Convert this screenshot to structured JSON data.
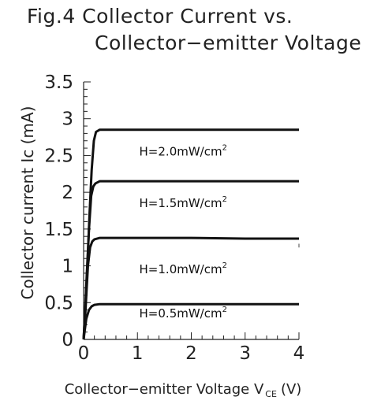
{
  "title": {
    "line1": "Fig.4 Collector Current vs.",
    "line2": "Collector−emitter Voltage"
  },
  "chart_data": {
    "type": "line",
    "title": "Fig.4 Collector Current vs. Collector−emitter Voltage",
    "xlabel_main": "Collector−emitter Voltage V",
    "xlabel_sub": "CE",
    "xlabel_unit": "(V)",
    "ylabel": "Collector current Ic (mA)",
    "xlim": [
      0,
      4
    ],
    "ylim": [
      0,
      3.5
    ],
    "x_ticks": [
      "0",
      "1",
      "2",
      "3",
      "4"
    ],
    "y_ticks": [
      "0",
      "0.5",
      "1",
      "1.5",
      "2",
      "2.5",
      "3",
      "3.5"
    ],
    "grid": false,
    "series": [
      {
        "name": "H=0.5mW/cm2",
        "label_main": "H=0.5mW/cm",
        "label_sup": "2",
        "label_x": 1.85,
        "label_y": 0.3,
        "x": [
          0,
          0.02,
          0.05,
          0.1,
          0.15,
          0.2,
          0.3,
          0.5,
          1,
          2,
          3,
          4
        ],
        "y": [
          0,
          0.12,
          0.28,
          0.4,
          0.45,
          0.47,
          0.48,
          0.48,
          0.48,
          0.48,
          0.48,
          0.48
        ]
      },
      {
        "name": "H=1.0mW/cm2",
        "label_main": "H=1.0mW/cm",
        "label_sup": "2",
        "label_x": 1.85,
        "label_y": 0.9,
        "x": [
          0,
          0.02,
          0.05,
          0.08,
          0.12,
          0.16,
          0.2,
          0.3,
          0.5,
          1,
          2,
          3,
          4
        ],
        "y": [
          0,
          0.2,
          0.6,
          1.0,
          1.25,
          1.33,
          1.36,
          1.38,
          1.38,
          1.38,
          1.38,
          1.37,
          1.37
        ]
      },
      {
        "name": "H=1.5mW/cm2",
        "label_main": "H=1.5mW/cm",
        "label_sup": "2",
        "label_x": 1.85,
        "label_y": 1.8,
        "x": [
          0,
          0.03,
          0.06,
          0.1,
          0.14,
          0.18,
          0.22,
          0.3,
          0.5,
          1,
          2,
          3,
          4
        ],
        "y": [
          0,
          0.4,
          0.9,
          1.5,
          1.95,
          2.08,
          2.12,
          2.15,
          2.15,
          2.15,
          2.15,
          2.15,
          2.15
        ]
      },
      {
        "name": "H=2.0mW/cm2",
        "label_main": "H=2.0mW/cm",
        "label_sup": "2",
        "label_x": 1.85,
        "label_y": 2.5,
        "x": [
          0,
          0.03,
          0.07,
          0.11,
          0.15,
          0.19,
          0.23,
          0.3,
          0.5,
          1,
          2,
          3,
          4
        ],
        "y": [
          0,
          0.4,
          1.0,
          1.7,
          2.3,
          2.7,
          2.82,
          2.85,
          2.85,
          2.85,
          2.85,
          2.85,
          2.85
        ]
      }
    ]
  }
}
